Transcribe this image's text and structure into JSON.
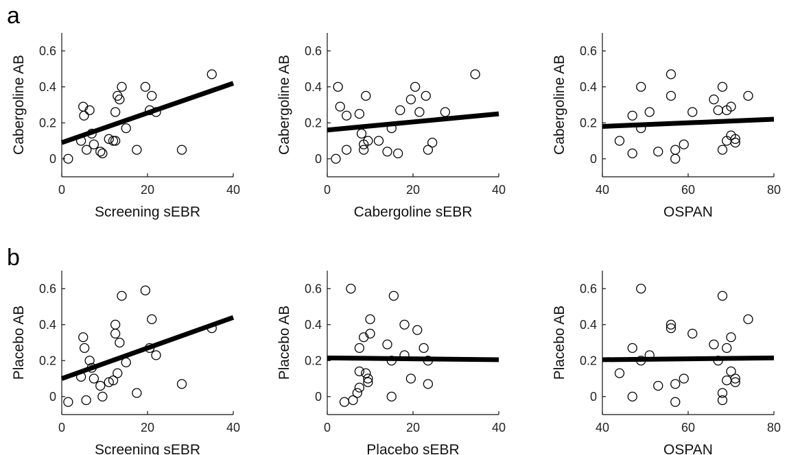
{
  "figure": {
    "panel_labels": [
      "a",
      "b"
    ]
  },
  "chart_data": [
    {
      "type": "scatter",
      "row": 0,
      "col": 0,
      "xlabel": "Screening sEBR",
      "ylabel": "Cabergoline AB",
      "xlim": [
        0,
        40
      ],
      "ylim": [
        -0.1,
        0.7
      ],
      "xticks": [
        0,
        20,
        40
      ],
      "yticks": [
        0,
        0.2,
        0.4,
        0.6
      ],
      "grid": false,
      "points": [
        [
          1.5,
          0
        ],
        [
          4.5,
          0.1
        ],
        [
          5,
          0.29
        ],
        [
          5.2,
          0.24
        ],
        [
          5.8,
          0.05
        ],
        [
          6.5,
          0.27
        ],
        [
          7,
          0.14
        ],
        [
          7.5,
          0.08
        ],
        [
          9,
          0.04
        ],
        [
          9.5,
          0.03
        ],
        [
          11,
          0.11
        ],
        [
          12,
          0.1
        ],
        [
          12.5,
          0.26
        ],
        [
          12.5,
          0.1
        ],
        [
          13,
          0.35
        ],
        [
          13.5,
          0.33
        ],
        [
          14,
          0.4
        ],
        [
          15,
          0.17
        ],
        [
          17.5,
          0.05
        ],
        [
          19.5,
          0.4
        ],
        [
          20.5,
          0.27
        ],
        [
          21,
          0.35
        ],
        [
          22,
          0.26
        ],
        [
          28,
          0.05
        ],
        [
          35,
          0.47
        ]
      ],
      "fit": [
        [
          0,
          0.09
        ],
        [
          40,
          0.42
        ]
      ]
    },
    {
      "type": "scatter",
      "row": 0,
      "col": 1,
      "xlabel": "Cabergoline sEBR",
      "ylabel": "Cabergoline AB",
      "xlim": [
        0,
        40
      ],
      "ylim": [
        -0.1,
        0.7
      ],
      "xticks": [
        0,
        20,
        40
      ],
      "yticks": [
        0,
        0.2,
        0.4,
        0.6
      ],
      "grid": false,
      "points": [
        [
          2,
          0
        ],
        [
          2.5,
          0.4
        ],
        [
          3,
          0.29
        ],
        [
          4.5,
          0.05
        ],
        [
          4.5,
          0.24
        ],
        [
          7.5,
          0.25
        ],
        [
          8,
          0.14
        ],
        [
          8.5,
          0.05
        ],
        [
          8.5,
          0.08
        ],
        [
          9,
          0.35
        ],
        [
          9.5,
          0.1
        ],
        [
          12,
          0.1
        ],
        [
          14,
          0.04
        ],
        [
          15,
          0.17
        ],
        [
          16.5,
          0.03
        ],
        [
          17,
          0.27
        ],
        [
          19.5,
          0.33
        ],
        [
          20.5,
          0.4
        ],
        [
          21.5,
          0.26
        ],
        [
          23,
          0.35
        ],
        [
          23.5,
          0.05
        ],
        [
          24.5,
          0.09
        ],
        [
          27.5,
          0.26
        ],
        [
          34.5,
          0.47
        ]
      ],
      "fit": [
        [
          0,
          0.16
        ],
        [
          40,
          0.25
        ]
      ]
    },
    {
      "type": "scatter",
      "row": 0,
      "col": 2,
      "xlabel": "OSPAN",
      "ylabel": "Cabergoline AB",
      "xlim": [
        40,
        80
      ],
      "ylim": [
        -0.1,
        0.7
      ],
      "xticks": [
        40,
        60,
        80
      ],
      "yticks": [
        0,
        0.2,
        0.4,
        0.6
      ],
      "grid": false,
      "points": [
        [
          44,
          0.1
        ],
        [
          47,
          0.03
        ],
        [
          47,
          0.24
        ],
        [
          49,
          0.17
        ],
        [
          49,
          0.4
        ],
        [
          51,
          0.26
        ],
        [
          53,
          0.04
        ],
        [
          56,
          0.35
        ],
        [
          56,
          0.47
        ],
        [
          57,
          0
        ],
        [
          57,
          0.05
        ],
        [
          59,
          0.08
        ],
        [
          61,
          0.26
        ],
        [
          66,
          0.33
        ],
        [
          67,
          0.27
        ],
        [
          68,
          0.05
        ],
        [
          68,
          0.4
        ],
        [
          69,
          0.27
        ],
        [
          69,
          0.1
        ],
        [
          70,
          0.29
        ],
        [
          70,
          0.13
        ],
        [
          71,
          0.11
        ],
        [
          71,
          0.09
        ],
        [
          74,
          0.35
        ]
      ],
      "fit": [
        [
          40,
          0.18
        ],
        [
          80,
          0.22
        ]
      ]
    },
    {
      "type": "scatter",
      "row": 1,
      "col": 0,
      "xlabel": "Screening sEBR",
      "ylabel": "Placebo AB",
      "xlim": [
        0,
        40
      ],
      "ylim": [
        -0.1,
        0.7
      ],
      "xticks": [
        0,
        20,
        40
      ],
      "yticks": [
        0,
        0.2,
        0.4,
        0.6
      ],
      "grid": false,
      "points": [
        [
          1.5,
          -0.03
        ],
        [
          4.5,
          0.11
        ],
        [
          5,
          0.33
        ],
        [
          5.3,
          0.27
        ],
        [
          5.7,
          -0.02
        ],
        [
          6.5,
          0.2
        ],
        [
          7,
          0.16
        ],
        [
          7.5,
          0.1
        ],
        [
          9,
          0.06
        ],
        [
          9.5,
          0
        ],
        [
          11,
          0.08
        ],
        [
          12,
          0.09
        ],
        [
          12.5,
          0.35
        ],
        [
          12.5,
          0.4
        ],
        [
          13,
          0.13
        ],
        [
          13.5,
          0.3
        ],
        [
          14,
          0.56
        ],
        [
          15,
          0.19
        ],
        [
          17.5,
          0.02
        ],
        [
          19.5,
          0.59
        ],
        [
          20.5,
          0.27
        ],
        [
          21,
          0.43
        ],
        [
          22,
          0.23
        ],
        [
          28,
          0.07
        ],
        [
          35,
          0.38
        ]
      ],
      "fit": [
        [
          0,
          0.1
        ],
        [
          40,
          0.44
        ]
      ]
    },
    {
      "type": "scatter",
      "row": 1,
      "col": 1,
      "xlabel": "Placebo sEBR",
      "ylabel": "Placebo AB",
      "xlim": [
        0,
        40
      ],
      "ylim": [
        -0.1,
        0.7
      ],
      "xticks": [
        0,
        20,
        40
      ],
      "yticks": [
        0,
        0.2,
        0.4,
        0.6
      ],
      "grid": false,
      "points": [
        [
          4,
          -0.03
        ],
        [
          5.5,
          0.6
        ],
        [
          6,
          -0.02
        ],
        [
          7,
          0.02
        ],
        [
          7.5,
          0.05
        ],
        [
          7.5,
          0.14
        ],
        [
          7.5,
          0.27
        ],
        [
          8.5,
          0.33
        ],
        [
          9,
          0.13
        ],
        [
          9.5,
          0.1
        ],
        [
          9.5,
          0.08
        ],
        [
          10,
          0.43
        ],
        [
          10,
          0.35
        ],
        [
          14,
          0.29
        ],
        [
          15,
          0
        ],
        [
          15,
          0.2
        ],
        [
          15.5,
          0.56
        ],
        [
          18,
          0.23
        ],
        [
          18,
          0.4
        ],
        [
          19.5,
          0.1
        ],
        [
          21,
          0.37
        ],
        [
          22.5,
          0.27
        ],
        [
          23.5,
          0.2
        ],
        [
          23.5,
          0.07
        ]
      ],
      "fit": [
        [
          0,
          0.215
        ],
        [
          40,
          0.205
        ]
      ]
    },
    {
      "type": "scatter",
      "row": 1,
      "col": 2,
      "xlabel": "OSPAN",
      "ylabel": "Placebo AB",
      "xlim": [
        40,
        80
      ],
      "ylim": [
        -0.1,
        0.7
      ],
      "xticks": [
        40,
        60,
        80
      ],
      "yticks": [
        0,
        0.2,
        0.4,
        0.6
      ],
      "grid": false,
      "points": [
        [
          44,
          0.13
        ],
        [
          47,
          0
        ],
        [
          47,
          0.27
        ],
        [
          49,
          0.6
        ],
        [
          49,
          0.2
        ],
        [
          51,
          0.23
        ],
        [
          53,
          0.06
        ],
        [
          56,
          0.4
        ],
        [
          56,
          0.38
        ],
        [
          57,
          0.07
        ],
        [
          57,
          -0.03
        ],
        [
          59,
          0.1
        ],
        [
          61,
          0.35
        ],
        [
          66,
          0.29
        ],
        [
          67,
          0.2
        ],
        [
          68,
          0.56
        ],
        [
          68,
          0.02
        ],
        [
          68,
          -0.02
        ],
        [
          69,
          0.27
        ],
        [
          69,
          0.09
        ],
        [
          70,
          0.33
        ],
        [
          70,
          0.14
        ],
        [
          71,
          0.1
        ],
        [
          71,
          0.08
        ],
        [
          74,
          0.43
        ]
      ],
      "fit": [
        [
          40,
          0.205
        ],
        [
          80,
          0.215
        ]
      ]
    }
  ]
}
